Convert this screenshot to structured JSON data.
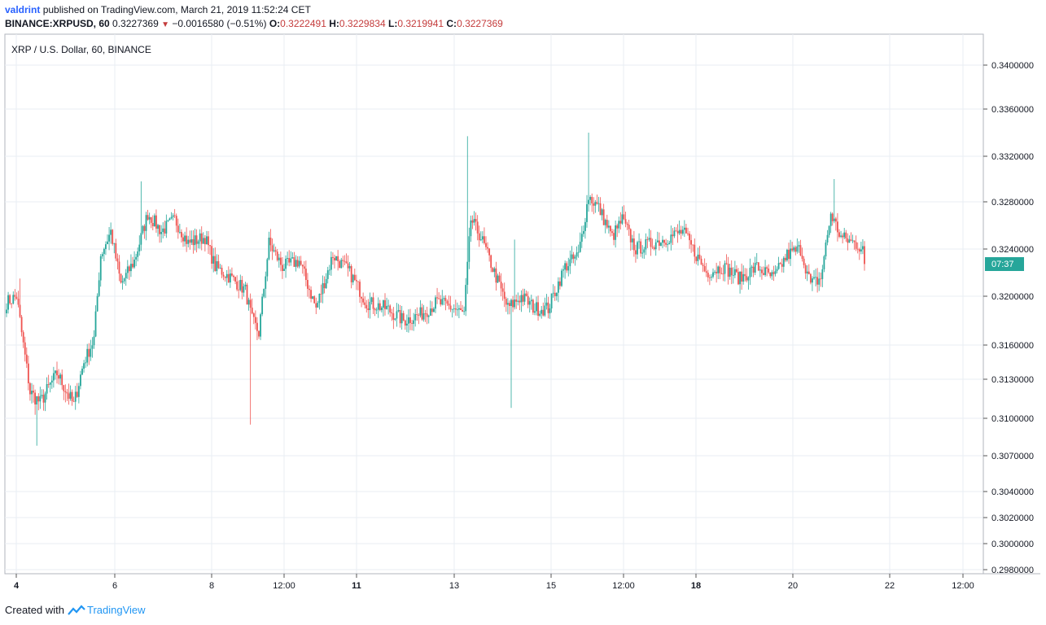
{
  "header": {
    "user": "valdrint",
    "published_text": "published on TradingView.com, March 21, 2019 11:52:24 CET",
    "symbol": "BINANCE:XRPUSD, 60",
    "last": "0.3227369",
    "change": "−0.0016580 (−0.51%)",
    "o_label": "O:",
    "o_value": "0.3222491",
    "h_label": "H:",
    "h_value": "0.3229834",
    "l_label": "L:",
    "l_value": "0.3219941",
    "c_label": "C:",
    "c_value": "0.3227369"
  },
  "footer": {
    "created_with": "Created with",
    "brand": "TradingView"
  },
  "colors": {
    "up": "#26a69a",
    "down": "#ef5350",
    "grid": "#e9eef3",
    "axis": "#555555",
    "badge": "#26a69a"
  },
  "chart_data": {
    "type": "candlestick",
    "title": "XRP / U.S. Dollar, 60, BINANCE",
    "price_label": "07:37",
    "y_ticks": [
      {
        "value": 0.34,
        "label": "0.3400000"
      },
      {
        "value": 0.336,
        "label": "0.3360000"
      },
      {
        "value": 0.332,
        "label": "0.3320000"
      },
      {
        "value": 0.328,
        "label": "0.3280000"
      },
      {
        "value": 0.324,
        "label": "0.3240000"
      },
      {
        "value": 0.32,
        "label": "0.3200000"
      },
      {
        "value": 0.316,
        "label": "0.3160000"
      },
      {
        "value": 0.313,
        "label": "0.3130000"
      },
      {
        "value": 0.31,
        "label": "0.3100000"
      },
      {
        "value": 0.307,
        "label": "0.3070000"
      },
      {
        "value": 0.304,
        "label": "0.3040000"
      },
      {
        "value": 0.302,
        "label": "0.3020000"
      },
      {
        "value": 0.3,
        "label": "0.3000000"
      },
      {
        "value": 0.298,
        "label": "0.2980000"
      }
    ],
    "x_ticks": [
      {
        "label": "4",
        "bold": true
      },
      {
        "label": "6",
        "bold": false
      },
      {
        "label": "8",
        "bold": false
      },
      {
        "label": "12:00",
        "bold": false
      },
      {
        "label": "11",
        "bold": true
      },
      {
        "label": "13",
        "bold": false
      },
      {
        "label": "15",
        "bold": false
      },
      {
        "label": "12:00",
        "bold": false
      },
      {
        "label": "18",
        "bold": true
      },
      {
        "label": "20",
        "bold": false
      },
      {
        "label": "22",
        "bold": false
      },
      {
        "label": "12:00",
        "bold": false
      }
    ],
    "current_price": 0.3227369,
    "keypoints": [
      [
        0,
        0.3195
      ],
      [
        6,
        0.32
      ],
      [
        10,
        0.316
      ],
      [
        14,
        0.312
      ],
      [
        20,
        0.3112
      ],
      [
        30,
        0.3135
      ],
      [
        40,
        0.311
      ],
      [
        46,
        0.3145
      ],
      [
        52,
        0.3165
      ],
      [
        56,
        0.3235
      ],
      [
        62,
        0.3255
      ],
      [
        68,
        0.321
      ],
      [
        76,
        0.323
      ],
      [
        84,
        0.327
      ],
      [
        92,
        0.3255
      ],
      [
        100,
        0.3265
      ],
      [
        108,
        0.3245
      ],
      [
        118,
        0.325
      ],
      [
        124,
        0.3225
      ],
      [
        134,
        0.3215
      ],
      [
        142,
        0.3205
      ],
      [
        146,
        0.318
      ],
      [
        150,
        0.317
      ],
      [
        156,
        0.3245
      ],
      [
        164,
        0.3225
      ],
      [
        174,
        0.323
      ],
      [
        184,
        0.319
      ],
      [
        194,
        0.3235
      ],
      [
        204,
        0.322
      ],
      [
        214,
        0.3195
      ],
      [
        226,
        0.319
      ],
      [
        236,
        0.318
      ],
      [
        246,
        0.3185
      ],
      [
        256,
        0.3195
      ],
      [
        266,
        0.319
      ],
      [
        272,
        0.3185
      ],
      [
        276,
        0.3265
      ],
      [
        282,
        0.325
      ],
      [
        290,
        0.322
      ],
      [
        298,
        0.319
      ],
      [
        306,
        0.32
      ],
      [
        314,
        0.319
      ],
      [
        322,
        0.319
      ],
      [
        332,
        0.3225
      ],
      [
        340,
        0.3235
      ],
      [
        346,
        0.3285
      ],
      [
        352,
        0.3275
      ],
      [
        360,
        0.325
      ],
      [
        366,
        0.3265
      ],
      [
        374,
        0.324
      ],
      [
        384,
        0.3245
      ],
      [
        394,
        0.325
      ],
      [
        402,
        0.3255
      ],
      [
        408,
        0.324
      ],
      [
        416,
        0.322
      ],
      [
        426,
        0.3225
      ],
      [
        436,
        0.3215
      ],
      [
        446,
        0.3225
      ],
      [
        456,
        0.3215
      ],
      [
        464,
        0.3235
      ],
      [
        472,
        0.324
      ],
      [
        478,
        0.321
      ],
      [
        484,
        0.3215
      ],
      [
        490,
        0.327
      ],
      [
        496,
        0.325
      ],
      [
        504,
        0.3245
      ],
      [
        510,
        0.324
      ]
    ],
    "spikes": [
      {
        "i": 8,
        "h": 0.3215
      },
      {
        "i": 18,
        "l": 0.3078
      },
      {
        "i": 80,
        "h": 0.3298
      },
      {
        "i": 145,
        "l": 0.3095
      },
      {
        "i": 274,
        "h": 0.3337
      },
      {
        "i": 300,
        "l": 0.3108
      },
      {
        "i": 302,
        "h": 0.3248
      },
      {
        "i": 346,
        "h": 0.334
      },
      {
        "i": 492,
        "h": 0.33
      }
    ]
  }
}
